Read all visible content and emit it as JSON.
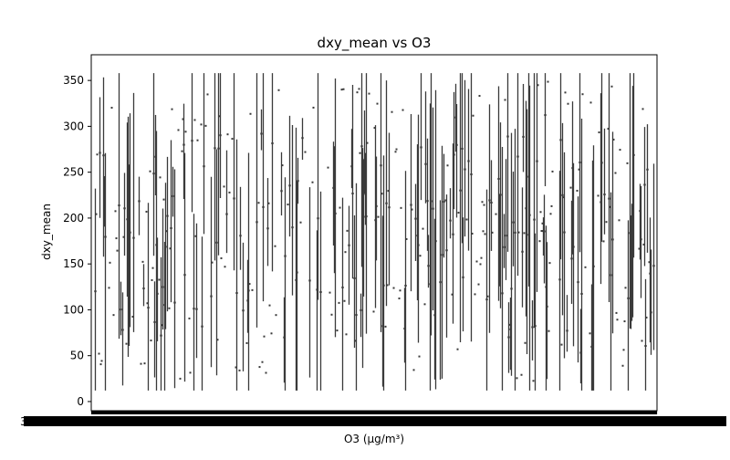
{
  "chart_data": {
    "type": "box",
    "title": "dxy_mean vs O3",
    "xlabel": "O3 (µg/m³)",
    "ylabel": "dxy_mean",
    "ylim": [
      -10,
      378
    ],
    "y_ticks": [
      0,
      50,
      100,
      150,
      200,
      250,
      300,
      350
    ],
    "x_tick_labels_note": "dense, overlapping O3 category labels (illegible)",
    "x_tick_first_label": "3",
    "category_count": 620,
    "grid": false,
    "legend": "none",
    "colors": {
      "box_line": "#3a3a3a",
      "axis": "#000000",
      "background": "#ffffff"
    }
  }
}
